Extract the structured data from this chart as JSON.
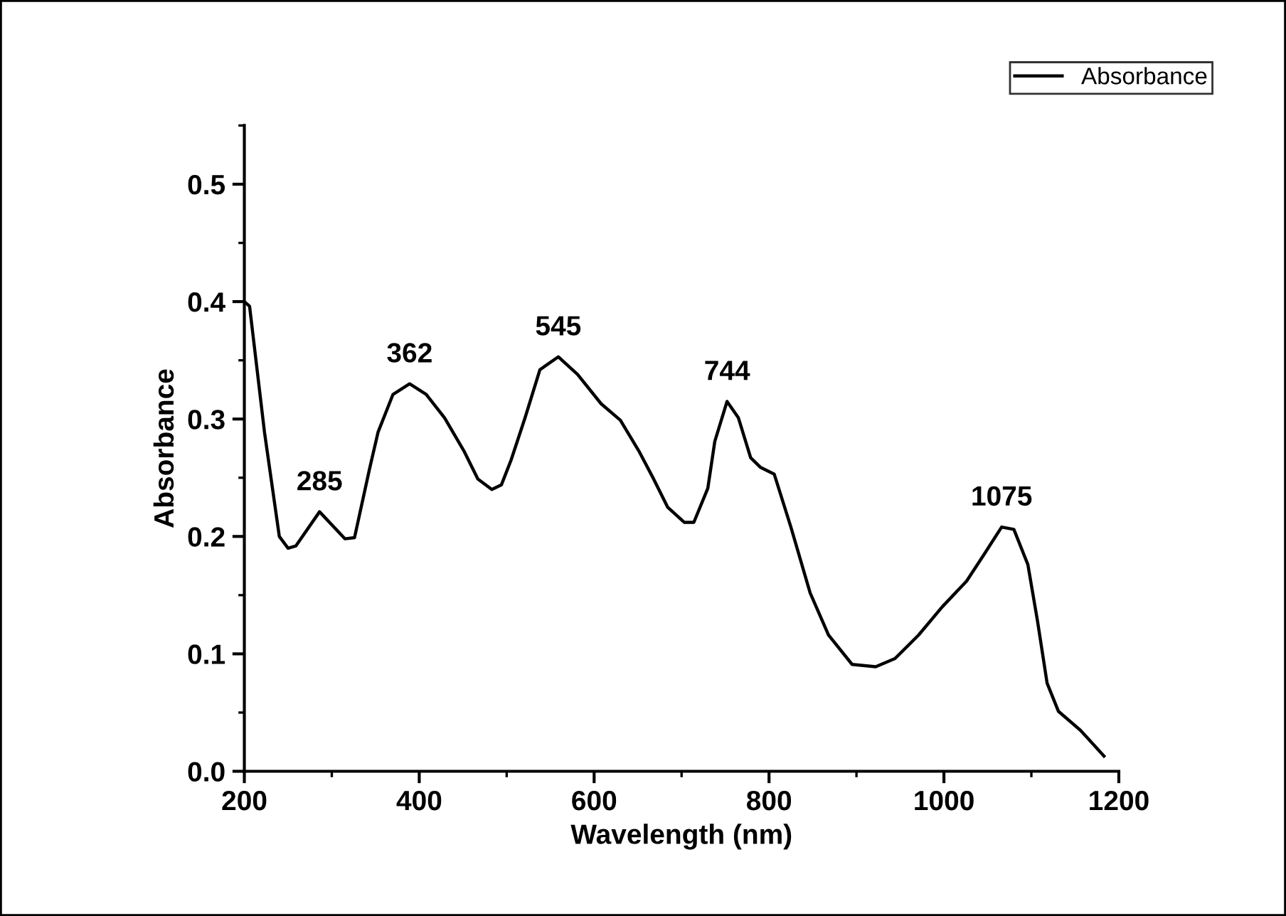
{
  "chart_data": {
    "type": "line",
    "xlabel": "Wavelength (nm)",
    "ylabel": "Absorbance",
    "xlim": [
      200,
      1200
    ],
    "xticks": [
      200,
      400,
      600,
      800,
      1000,
      1200
    ],
    "ylim": [
      0,
      0.55
    ],
    "yticks": [
      {
        "value": 0,
        "label": "0.0"
      },
      0.1,
      0.2,
      0.3,
      0.4,
      0.5
    ],
    "legend": "top right",
    "line_style": "solid",
    "marker": "none",
    "annotations": [
      {
        "text": "285",
        "x": 286,
        "y": 0.221
      },
      {
        "text": "362",
        "x": 389,
        "y": 0.33
      },
      {
        "text": "545",
        "x": 559,
        "y": 0.353
      },
      {
        "text": "744",
        "x": 752,
        "y": 0.315
      },
      {
        "text": "1075",
        "x": 1066,
        "y": 0.208
      }
    ],
    "series": [
      {
        "name": "Absorbance",
        "color": "#000000",
        "x": [
          200,
          206,
          223,
          240,
          250,
          259,
          286,
          315,
          326,
          343,
          353,
          370,
          389,
          408,
          429,
          451,
          467,
          483,
          494,
          505,
          521,
          538,
          559,
          581,
          608,
          630,
          651,
          668,
          684,
          703,
          714,
          730,
          738,
          752,
          765,
          779,
          790,
          806,
          825,
          847,
          868,
          895,
          922,
          944,
          971,
          998,
          1026,
          1047,
          1066,
          1080,
          1096,
          1107,
          1118,
          1131,
          1156,
          1183
        ],
        "values": [
          0.4,
          0.396,
          0.289,
          0.2,
          0.19,
          0.192,
          0.221,
          0.198,
          0.199,
          0.257,
          0.289,
          0.321,
          0.33,
          0.321,
          0.301,
          0.273,
          0.249,
          0.24,
          0.244,
          0.265,
          0.301,
          0.342,
          0.353,
          0.338,
          0.313,
          0.299,
          0.273,
          0.249,
          0.225,
          0.212,
          0.212,
          0.241,
          0.281,
          0.315,
          0.301,
          0.267,
          0.259,
          0.253,
          0.208,
          0.152,
          0.116,
          0.091,
          0.089,
          0.096,
          0.116,
          0.14,
          0.162,
          0.186,
          0.208,
          0.206,
          0.176,
          0.128,
          0.075,
          0.051,
          0.035,
          0.013
        ]
      }
    ]
  }
}
